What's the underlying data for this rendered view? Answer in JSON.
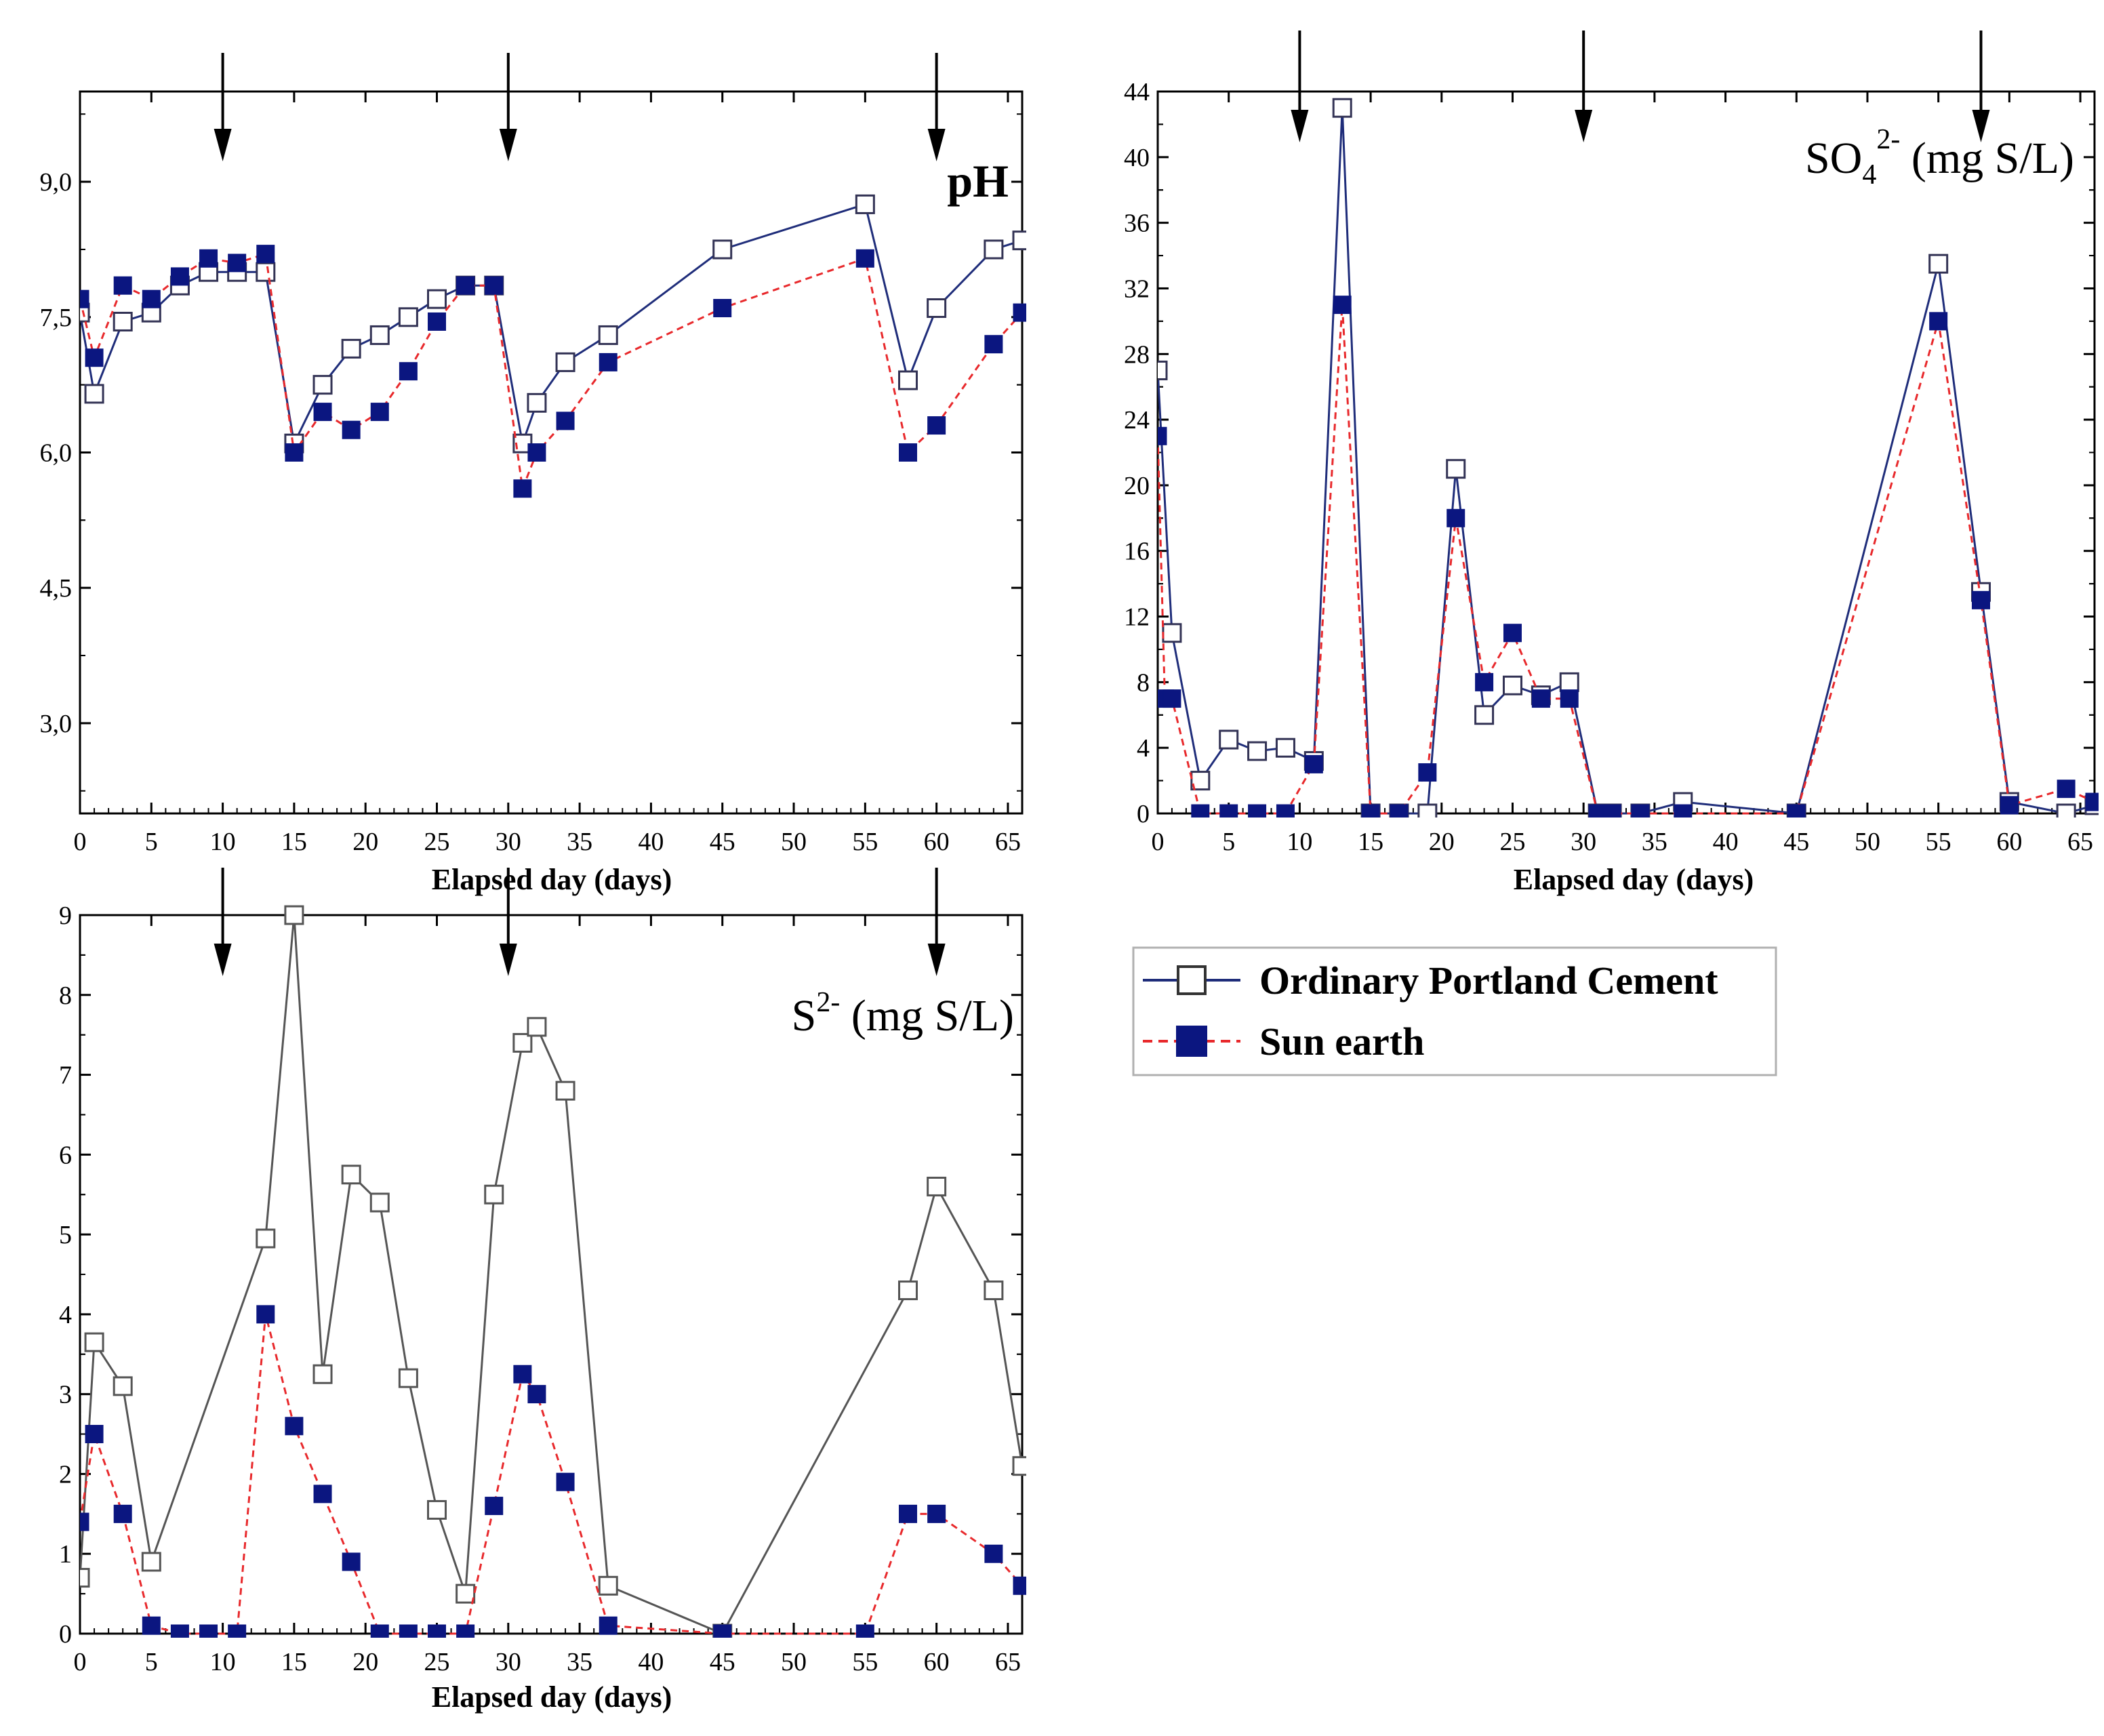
{
  "chart_data": [
    {
      "type": "line",
      "id": "ph",
      "title": "pH",
      "xlabel": "Elapsed day (days)",
      "ylabel": "",
      "xlim": [
        0,
        66
      ],
      "ylim": [
        2.0,
        10.0
      ],
      "xticks": [
        0,
        5,
        10,
        15,
        20,
        25,
        30,
        35,
        40,
        45,
        50,
        55,
        60,
        65
      ],
      "xtick_labels": [
        "0",
        "5",
        "10",
        "15",
        "20",
        "25",
        "30",
        "35",
        "40",
        "45",
        "50",
        "55",
        "60",
        "65"
      ],
      "yticks": [
        3.0,
        4.5,
        6.0,
        7.5,
        9.0
      ],
      "ytick_labels": [
        "3,0",
        "4,5",
        "6,0",
        "7,5",
        "9,0"
      ],
      "arrows_at": [
        10,
        30,
        60
      ],
      "series": [
        {
          "name": "Ordinary Portland Cement",
          "x": [
            0,
            1,
            3,
            5,
            7,
            9,
            11,
            13,
            15,
            17,
            19,
            21,
            23,
            25,
            27,
            29,
            31,
            32,
            34,
            37,
            45,
            55,
            58,
            60,
            64,
            66
          ],
          "y": [
            7.55,
            6.65,
            7.45,
            7.55,
            7.85,
            8.0,
            8.0,
            8.0,
            6.1,
            6.75,
            7.15,
            7.3,
            7.5,
            7.7,
            7.85,
            7.85,
            6.1,
            6.55,
            7.0,
            7.3,
            8.25,
            8.75,
            6.8,
            7.6,
            8.25,
            8.35
          ]
        },
        {
          "name": "Sun earth",
          "x": [
            0,
            1,
            3,
            5,
            7,
            9,
            11,
            13,
            15,
            17,
            19,
            21,
            23,
            25,
            27,
            29,
            31,
            32,
            34,
            37,
            45,
            55,
            58,
            60,
            64,
            66
          ],
          "y": [
            7.7,
            7.05,
            7.85,
            7.7,
            7.95,
            8.15,
            8.1,
            8.2,
            6.0,
            6.45,
            6.25,
            6.45,
            6.9,
            7.45,
            7.85,
            7.85,
            5.6,
            6.0,
            6.35,
            7.0,
            7.6,
            8.15,
            6.0,
            6.3,
            7.2,
            7.55
          ]
        }
      ]
    },
    {
      "type": "line",
      "id": "sulfate",
      "title": "SO",
      "title_sub": "4",
      "title_sup": "2-",
      "title_suffix": " (mg S/L)",
      "xlabel": "Elapsed day (days)",
      "ylabel": "",
      "xlim": [
        0,
        66
      ],
      "ylim": [
        0,
        44
      ],
      "xticks": [
        0,
        5,
        10,
        15,
        20,
        25,
        30,
        35,
        40,
        45,
        50,
        55,
        60,
        65
      ],
      "xtick_labels": [
        "0",
        "5",
        "10",
        "15",
        "20",
        "25",
        "30",
        "35",
        "40",
        "45",
        "50",
        "55",
        "60",
        "65"
      ],
      "yticks": [
        0,
        4,
        8,
        12,
        16,
        20,
        24,
        28,
        32,
        36,
        40,
        44
      ],
      "ytick_labels": [
        "0",
        "4",
        "8",
        "12",
        "16",
        "20",
        "24",
        "28",
        "32",
        "36",
        "40",
        "44"
      ],
      "arrows_at": [
        10,
        30,
        58
      ],
      "series": [
        {
          "name": "Ordinary Portland Cement",
          "x": [
            0,
            1,
            3,
            5,
            7,
            9,
            11,
            13,
            15,
            17,
            19,
            21,
            23,
            25,
            27,
            29,
            31,
            32,
            34,
            37,
            45,
            55,
            58,
            60,
            64,
            66
          ],
          "y": [
            27,
            11,
            2,
            4.5,
            3.8,
            4,
            3.2,
            43,
            0,
            0,
            0,
            21,
            6,
            7.8,
            7.2,
            8,
            0,
            0,
            0,
            0.7,
            0,
            33.5,
            13.5,
            0.7,
            0,
            0.5
          ]
        },
        {
          "name": "Sun earth",
          "x": [
            0,
            0.5,
            1,
            3,
            5,
            7,
            9,
            11,
            13,
            15,
            17,
            19,
            21,
            23,
            25,
            27,
            29,
            31,
            32,
            34,
            37,
            45,
            55,
            58,
            60,
            64,
            66
          ],
          "y": [
            23,
            7,
            7,
            0,
            0,
            0,
            0,
            3,
            31,
            0,
            0,
            2.5,
            18,
            8,
            11,
            7,
            7,
            0,
            0,
            0,
            0,
            0,
            30,
            13,
            0.5,
            1.5,
            0.7
          ]
        }
      ]
    },
    {
      "type": "line",
      "id": "sulfide",
      "title": "S",
      "title_sup": "2-",
      "title_suffix": " (mg S/L)",
      "xlabel": "Elapsed day (days)",
      "ylabel": "",
      "xlim": [
        0,
        66
      ],
      "ylim": [
        0,
        9
      ],
      "xticks": [
        0,
        5,
        10,
        15,
        20,
        25,
        30,
        35,
        40,
        45,
        50,
        55,
        60,
        65
      ],
      "xtick_labels": [
        "0",
        "5",
        "10",
        "15",
        "20",
        "25",
        "30",
        "35",
        "40",
        "45",
        "50",
        "55",
        "60",
        "65"
      ],
      "yticks": [
        0,
        1,
        2,
        3,
        4,
        5,
        6,
        7,
        8,
        9
      ],
      "ytick_labels": [
        "0",
        "1",
        "2",
        "3",
        "4",
        "5",
        "6",
        "7",
        "8",
        "9"
      ],
      "arrows_at": [
        10,
        30,
        60
      ],
      "series": [
        {
          "name": "Ordinary Portland Cement",
          "x": [
            0,
            1,
            3,
            5,
            13,
            15,
            17,
            19,
            21,
            23,
            25,
            27,
            29,
            31,
            32,
            34,
            37,
            45,
            58,
            60,
            64,
            66
          ],
          "y": [
            0.7,
            3.65,
            3.1,
            0.9,
            4.95,
            9.0,
            3.25,
            5.75,
            5.4,
            3.2,
            1.55,
            0.5,
            5.5,
            7.4,
            7.6,
            6.8,
            0.6,
            0,
            4.3,
            5.6,
            4.3,
            2.1
          ]
        },
        {
          "name": "Sun earth",
          "x": [
            0,
            1,
            3,
            5,
            7,
            9,
            11,
            13,
            15,
            17,
            19,
            21,
            23,
            25,
            27,
            29,
            31,
            32,
            34,
            37,
            45,
            55,
            58,
            60,
            64,
            66
          ],
          "y": [
            1.4,
            2.5,
            1.5,
            0.1,
            0,
            0,
            0,
            4.0,
            2.6,
            1.75,
            0.9,
            0,
            0,
            0,
            0,
            1.6,
            3.25,
            3.0,
            1.9,
            0.1,
            0,
            0,
            1.5,
            1.5,
            1.0,
            0.6
          ]
        }
      ]
    }
  ],
  "legend": {
    "items": [
      {
        "label": "Ordinary Portland Cement",
        "line_color": "#1f2d7a",
        "marker": "open-square"
      },
      {
        "label": "Sun earth",
        "line_color": "#e8292c",
        "marker": "filled-square"
      }
    ]
  },
  "colors": {
    "opc_line": "#1f2d7a",
    "opc_line_s2": "#555555",
    "sun_line": "#e8292c",
    "sun_marker": "#0b1680",
    "axis": "#000000"
  }
}
